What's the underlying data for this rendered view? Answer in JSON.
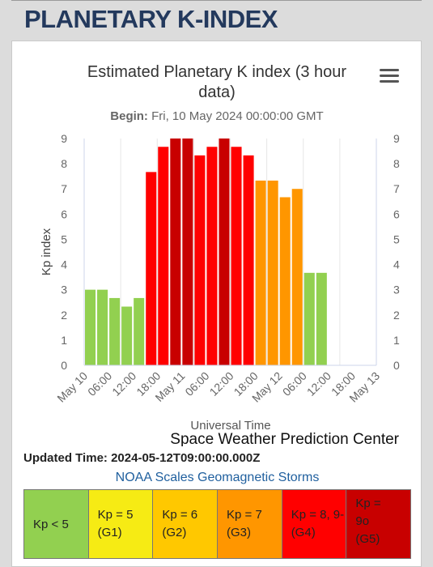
{
  "page": {
    "title": "PLANETARY K-INDEX"
  },
  "chart_data": {
    "type": "bar",
    "title": "Estimated Planetary K index (3 hour data)",
    "subtitle_label": "Begin:",
    "subtitle_value": "Fri, 10 May 2024 00:00:00 GMT",
    "xlabel": "Universal Time",
    "ylabel": "Kp index",
    "ylim": [
      0,
      9
    ],
    "yticks": [
      0,
      1,
      2,
      3,
      4,
      5,
      6,
      7,
      8,
      9
    ],
    "x_tick_labels": [
      "May 10",
      "06:00",
      "12:00",
      "18:00",
      "May 11",
      "06:00",
      "12:00",
      "18:00",
      "May 12",
      "06:00",
      "12:00",
      "18:00",
      "May 13"
    ],
    "credit": "Space Weather Prediction Center",
    "values": [
      3.0,
      3.0,
      2.67,
      2.33,
      2.67,
      7.67,
      8.67,
      9.0,
      9.0,
      8.33,
      8.67,
      9.0,
      8.67,
      8.33,
      7.33,
      7.33,
      6.67,
      7.0,
      3.67,
      3.67
    ],
    "colors": {
      "g0": "#92d050",
      "g1": "#f6eb14",
      "g2": "#ffc800",
      "g3": "#ff9600",
      "g4": "#ff0000",
      "g5": "#c80000"
    },
    "grid": true
  },
  "updated": {
    "label": "Updated Time:",
    "value": "2024-05-12T09:00:00.000Z"
  },
  "noaa_link": "NOAA Scales Geomagnetic Storms",
  "scale": [
    {
      "line1": "Kp < 5",
      "line2": "",
      "color": "#92d050"
    },
    {
      "line1": "Kp = 5",
      "line2": "(G1)",
      "color": "#f6eb14"
    },
    {
      "line1": "Kp = 6",
      "line2": "(G2)",
      "color": "#ffc800"
    },
    {
      "line1": "Kp = 7",
      "line2": "(G3)",
      "color": "#ff9600"
    },
    {
      "line1": "Kp = 8, 9-",
      "line2": "(G4)",
      "color": "#ff0000"
    },
    {
      "line1": "Kp =",
      "line2": "9o",
      "line3": "(G5)",
      "color": "#c80000"
    }
  ],
  "menu_icon": "hamburger-menu-icon"
}
